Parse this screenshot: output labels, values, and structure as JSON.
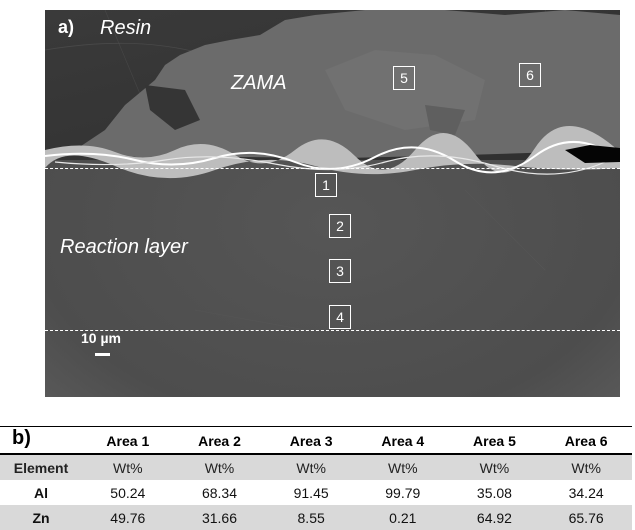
{
  "figure": {
    "panel_a": {
      "label": "a)",
      "labels": {
        "resin": "Resin",
        "zama": "ZAMA",
        "reaction_layer": "Reaction layer"
      },
      "areas": [
        "1",
        "2",
        "3",
        "4",
        "5",
        "6"
      ],
      "scale_bar": "10 µm"
    },
    "panel_b": {
      "label": "b)",
      "headers": [
        "Area 1",
        "Area 2",
        "Area 3",
        "Area 4",
        "Area 5",
        "Area 6"
      ],
      "unit_row": {
        "label": "Element",
        "units": [
          "Wt%",
          "Wt%",
          "Wt%",
          "Wt%",
          "Wt%",
          "Wt%"
        ]
      },
      "rows": [
        {
          "element": "Al",
          "values": [
            "50.24",
            "68.34",
            "91.45",
            "99.79",
            "35.08",
            "34.24"
          ]
        },
        {
          "element": "Zn",
          "values": [
            "49.76",
            "31.66",
            "8.55",
            "0.21",
            "64.92",
            "65.76"
          ]
        }
      ]
    }
  }
}
